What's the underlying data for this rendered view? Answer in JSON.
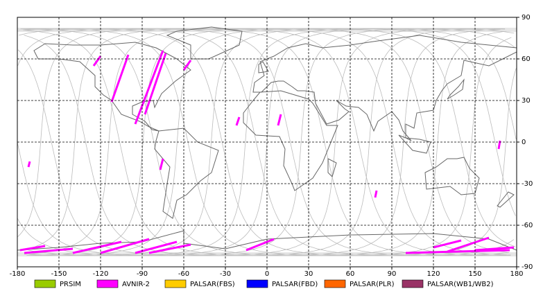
{
  "map": {
    "xlim": [
      -180,
      180
    ],
    "ylim": [
      -90,
      90
    ],
    "xticks": [
      -180,
      -150,
      -120,
      -90,
      -60,
      -30,
      0,
      30,
      60,
      90,
      120,
      150,
      180
    ],
    "yticks": [
      -90,
      -60,
      -30,
      0,
      30,
      60,
      90
    ]
  },
  "legend": [
    {
      "label": "PRSIM",
      "color": "#99cc00"
    },
    {
      "label": "AVNIR-2",
      "color": "#ff00ff"
    },
    {
      "label": "PALSAR(FBS)",
      "color": "#ffcc00"
    },
    {
      "label": "PALSAR(FBD)",
      "color": "#0000ff"
    },
    {
      "label": "PALSAR(PLR)",
      "color": "#ff6600"
    },
    {
      "label": "PALSAR(WB1/WB2)",
      "color": "#993366"
    }
  ]
}
